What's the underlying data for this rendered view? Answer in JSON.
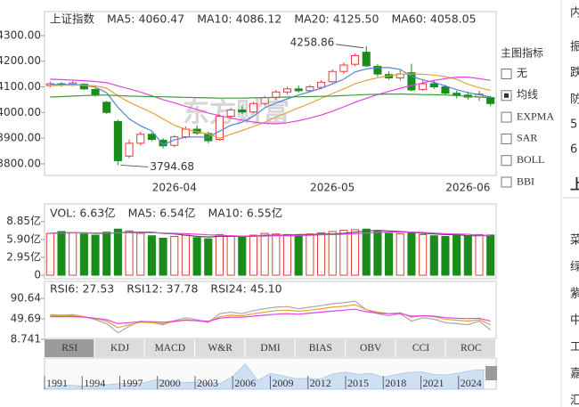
{
  "chart_data": [
    {
      "type": "candlestick",
      "title": "上证指数",
      "categories": [
        null,
        null,
        null,
        null,
        null,
        null,
        null,
        null,
        null,
        null,
        null,
        "2026-04",
        null,
        null,
        null,
        null,
        null,
        null,
        null,
        null,
        null,
        null,
        null,
        null,
        null,
        "2026-05",
        null,
        null,
        null,
        null,
        null,
        null,
        null,
        null,
        null,
        null,
        null,
        "2026-06",
        null,
        null
      ],
      "candles": {
        "open": [
          4105,
          4112,
          4108,
          4110,
          4090,
          4040,
          3965,
          3830,
          3880,
          3915,
          3892,
          3872,
          3905,
          3935,
          3918,
          3895,
          3985,
          4010,
          4002,
          4035,
          4058,
          4080,
          4092,
          4085,
          4098,
          4120,
          4160,
          4188,
          4235,
          4180,
          4148,
          4135,
          4155,
          4090,
          4112,
          4100,
          4075,
          4068,
          4060,
          4058
        ],
        "high": [
          4120,
          4118,
          4122,
          4114,
          4095,
          4045,
          3972,
          3895,
          3925,
          3922,
          3900,
          3912,
          3945,
          3950,
          3925,
          3992,
          4018,
          4025,
          4042,
          4065,
          4088,
          4100,
          4105,
          4108,
          4125,
          4168,
          4195,
          4230,
          4258.86,
          4188,
          4160,
          4165,
          4190,
          4125,
          4128,
          4108,
          4085,
          4082,
          4085,
          4065
        ],
        "low": [
          4098,
          4100,
          4102,
          4088,
          4062,
          3995,
          3794.68,
          3822,
          3872,
          3888,
          3860,
          3865,
          3898,
          3912,
          3880,
          3890,
          3975,
          3995,
          3998,
          4028,
          4050,
          4072,
          4078,
          4080,
          4090,
          4115,
          4150,
          4180,
          4178,
          4140,
          4128,
          4125,
          4082,
          4085,
          4092,
          4068,
          4055,
          4050,
          4045,
          4025
        ],
        "close": [
          4112,
          4108,
          4115,
          4092,
          4070,
          4000,
          3812,
          3880,
          3915,
          3895,
          3870,
          3905,
          3935,
          3920,
          3890,
          3985,
          4010,
          4002,
          4035,
          4058,
          4080,
          4092,
          4085,
          4100,
          4118,
          4160,
          4185,
          4222,
          4182,
          4150,
          4135,
          4150,
          4088,
          4112,
          4100,
          4075,
          4068,
          4060,
          4072,
          4035
        ]
      },
      "up_color": "#e23b3b",
      "down_color": "#1a8c1a",
      "series": [
        {
          "name": "MA5: 4060.47",
          "color": "#4f86d9",
          "values": [
            4110,
            4108,
            4110,
            4106,
            4099,
            4077,
            4020,
            3975,
            3948,
            3928,
            3874,
            3893,
            3904,
            3905,
            3904,
            3927,
            3950,
            3962,
            3985,
            4018,
            4037,
            4053,
            4068,
            4081,
            4095,
            4111,
            4130,
            4158,
            4170,
            4175,
            4175,
            4168,
            4141,
            4127,
            4117,
            4104,
            4089,
            4077,
            4069,
            4060.47
          ]
        },
        {
          "name": "MA10: 4086.12",
          "color": "#e6a23a",
          "values": [
            4105,
            4106,
            4107,
            4106,
            4104,
            4095,
            4065,
            4040,
            4020,
            4000,
            3975,
            3950,
            3935,
            3925,
            3916,
            3900,
            3915,
            3930,
            3945,
            3962,
            3982,
            4000,
            4018,
            4035,
            4055,
            4074,
            4092,
            4112,
            4125,
            4135,
            4143,
            4150,
            4150,
            4149,
            4146,
            4140,
            4130,
            4110,
            4097,
            4086.12
          ]
        },
        {
          "name": "MA20: 4125.50",
          "color": "#e443e4",
          "values": [
            4130,
            4128,
            4126,
            4124,
            4121,
            4116,
            4104,
            4092,
            4080,
            4065,
            4050,
            4038,
            4024,
            4012,
            3998,
            3988,
            3978,
            3970,
            3963,
            3958,
            3956,
            3960,
            3968,
            3978,
            3990,
            4005,
            4022,
            4040,
            4055,
            4070,
            4082,
            4095,
            4105,
            4115,
            4125,
            4132,
            4138,
            4138,
            4132,
            4125.5
          ]
        },
        {
          "name": "MA60: 4058.05",
          "color": "#3c9a3c",
          "values": [
            4060,
            4062,
            4064,
            4066,
            4067,
            4068,
            4066,
            4064,
            4063,
            4062,
            4061,
            4060,
            4059,
            4058,
            4057,
            4056,
            4056,
            4056,
            4057,
            4058,
            4059,
            4060,
            4061,
            4062,
            4063,
            4064,
            4066,
            4068,
            4070,
            4071,
            4072,
            4072,
            4071,
            4070,
            4069,
            4068,
            4066,
            4063,
            4060,
            4058.05
          ]
        }
      ],
      "annotations": [
        4258.86,
        3794.68
      ],
      "ylim": [
        3758,
        4390
      ],
      "yticks": [
        {
          "value": 3800,
          "label": "3800.00"
        },
        {
          "value": 3900,
          "label": "3900.00"
        },
        {
          "value": 4000,
          "label": "4000.00"
        },
        {
          "value": 4100,
          "label": "4100.00"
        },
        {
          "value": 4200,
          "label": "4200.00"
        },
        {
          "value": 4300,
          "label": "4300.00"
        }
      ],
      "watermark": "东方财富"
    },
    {
      "type": "bar",
      "values": [
        6.9,
        7.2,
        7.0,
        6.8,
        6.6,
        7.1,
        7.6,
        7.3,
        6.9,
        6.5,
        6.1,
        6.4,
        6.6,
        6.2,
        6.0,
        6.7,
        6.5,
        6.3,
        6.6,
        6.9,
        6.8,
        6.7,
        6.5,
        6.8,
        7.0,
        7.2,
        7.4,
        7.5,
        7.6,
        7.2,
        6.9,
        6.8,
        7.1,
        6.7,
        6.5,
        6.4,
        6.6,
        6.5,
        6.7,
        6.63
      ],
      "bar_legend": {
        "name": "VOL: 6.63亿",
        "color": "#e8507a"
      },
      "series": [
        {
          "name": "MA5: 6.54亿",
          "color": "#555555",
          "values": [
            6.9,
            7.0,
            7.0,
            7.0,
            6.9,
            6.9,
            7.0,
            7.1,
            7.1,
            7.1,
            6.9,
            6.8,
            6.6,
            6.4,
            6.3,
            6.4,
            6.4,
            6.4,
            6.4,
            6.6,
            6.6,
            6.6,
            6.7,
            6.7,
            6.8,
            6.8,
            6.9,
            7.1,
            7.3,
            7.4,
            7.3,
            7.2,
            7.1,
            6.9,
            6.8,
            6.7,
            6.7,
            6.5,
            6.5,
            6.54
          ]
        },
        {
          "name": "MA10: 6.55亿",
          "color": "#e443e4",
          "values": [
            6.9,
            6.95,
            6.97,
            6.97,
            6.96,
            6.95,
            6.97,
            7.0,
            7.0,
            7.0,
            6.95,
            6.9,
            6.85,
            6.75,
            6.65,
            6.6,
            6.5,
            6.45,
            6.45,
            6.45,
            6.5,
            6.5,
            6.55,
            6.6,
            6.65,
            6.7,
            6.75,
            6.85,
            6.95,
            7.05,
            7.1,
            7.1,
            7.1,
            7.05,
            6.95,
            6.85,
            6.8,
            6.75,
            6.6,
            6.55
          ]
        }
      ],
      "ylim": [
        0,
        11.75
      ],
      "yticks": [
        {
          "value": 8.85,
          "label": "8.85亿"
        },
        {
          "value": 5.9,
          "label": "5.90亿"
        },
        {
          "value": 2.95,
          "label": "2.95亿"
        },
        0
      ]
    },
    {
      "type": "line",
      "series": [
        {
          "name": "RSI6: 27.53",
          "color": "#a8a8a8",
          "values": [
            58,
            57,
            58,
            54,
            48,
            40,
            22,
            35,
            45,
            42,
            38,
            46,
            52,
            48,
            42,
            60,
            63,
            60,
            66,
            70,
            73,
            74,
            70,
            73,
            76,
            80,
            82,
            85,
            68,
            60,
            56,
            60,
            45,
            52,
            49,
            42,
            40,
            38,
            45,
            27.53
          ]
        },
        {
          "name": "RSI12: 37.78",
          "color": "#e6a23a",
          "values": [
            56,
            56,
            56,
            54,
            50,
            45,
            32,
            38,
            43,
            42,
            40,
            44,
            48,
            46,
            43,
            54,
            57,
            56,
            60,
            63,
            66,
            67,
            65,
            67,
            70,
            73,
            75,
            78,
            68,
            63,
            60,
            62,
            53,
            56,
            54,
            49,
            47,
            45,
            48,
            37.78
          ]
        },
        {
          "name": "RSI24: 45.10",
          "color": "#e443e4",
          "values": [
            54,
            54,
            54,
            53,
            51,
            48,
            40,
            42,
            44,
            44,
            43,
            45,
            47,
            46,
            45,
            51,
            53,
            53,
            55,
            57,
            59,
            60,
            59,
            61,
            63,
            65,
            67,
            69,
            64,
            61,
            60,
            60,
            55,
            56,
            55,
            52,
            51,
            50,
            51,
            45.1
          ]
        }
      ],
      "ylim": [
        8.741,
        120.9
      ],
      "yticks": [
        90.64,
        49.69,
        8.741
      ]
    }
  ],
  "indicator_panel": {
    "title": "主图指标",
    "options": [
      {
        "label": "无",
        "checked": false
      },
      {
        "label": "均线",
        "checked": true
      },
      {
        "label": "EXPMA",
        "checked": false
      },
      {
        "label": "SAR",
        "checked": false
      },
      {
        "label": "BOLL",
        "checked": false
      },
      {
        "label": "BBI",
        "checked": false
      }
    ]
  },
  "tabs": [
    {
      "label": "RSI",
      "selected": true
    },
    {
      "label": "KDJ",
      "selected": false
    },
    {
      "label": "MACD",
      "selected": false
    },
    {
      "label": "W&R",
      "selected": false
    },
    {
      "label": "DMI",
      "selected": false
    },
    {
      "label": "BIAS",
      "selected": false
    },
    {
      "label": "OBV",
      "selected": false
    },
    {
      "label": "CCI",
      "selected": false
    },
    {
      "label": "ROC",
      "selected": false
    }
  ],
  "timeline": {
    "years": [
      "1991",
      "1994",
      "1997",
      "2000",
      "2003",
      "2006",
      "2009",
      "2012",
      "2015",
      "2018",
      "2021",
      "2024"
    ],
    "xlim": [
      1991,
      2027
    ],
    "overview": {
      "x": [
        1991,
        1992,
        1993,
        1994,
        1995,
        1996,
        1997,
        1998,
        1999,
        2000,
        2001,
        2002,
        2003,
        2004,
        2005,
        2006,
        2007,
        2008,
        2009,
        2010,
        2011,
        2012,
        2013,
        2014,
        2015,
        2016,
        2017,
        2018,
        2019,
        2020,
        2021,
        2022,
        2023,
        2024,
        2025,
        2026
      ],
      "values": [
        130,
        780,
        830,
        650,
        560,
        920,
        1190,
        1150,
        1370,
        2070,
        1650,
        1360,
        1500,
        1270,
        1160,
        2680,
        5260,
        1820,
        3280,
        2810,
        2200,
        2270,
        2120,
        3230,
        3540,
        3100,
        3310,
        2490,
        3050,
        3470,
        3640,
        3090,
        2970,
        3350,
        3900,
        4060
      ],
      "ylim": [
        0,
        6500
      ]
    }
  },
  "sidebar": [
    "内",
    "振",
    "跌",
    "防",
    "5",
    "6",
    "上",
    "菜",
    "绿",
    "紫",
    "中",
    "工",
    "嘉",
    "汇"
  ]
}
